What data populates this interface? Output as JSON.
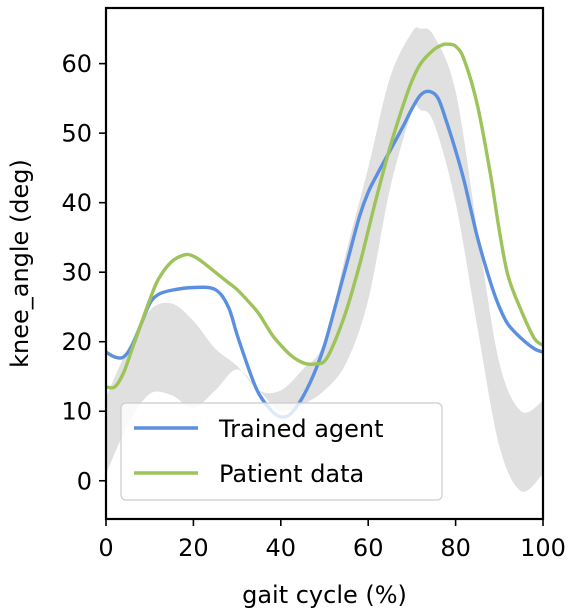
{
  "chart_data": {
    "type": "line",
    "xlabel": "gait cycle (%)",
    "ylabel": "knee_angle (deg)",
    "xlim": [
      0,
      100
    ],
    "ylim": [
      -5.5,
      68
    ],
    "xticks": [
      0,
      20,
      40,
      60,
      80,
      100
    ],
    "yticks": [
      0,
      10,
      20,
      30,
      40,
      50,
      60
    ],
    "grid": false,
    "legend_position": "lower-left",
    "band": {
      "color": "#e0e0e0",
      "x": [
        0,
        5,
        10,
        15,
        20,
        25,
        30,
        35,
        40,
        45,
        50,
        55,
        60,
        65,
        70,
        72,
        75,
        80,
        85,
        90,
        95,
        100
      ],
      "lower": [
        1,
        8,
        12.5,
        12.3,
        10.5,
        13,
        16,
        13,
        10,
        11,
        13,
        17,
        26,
        42,
        53,
        53.3,
        51.5,
        40,
        22,
        5,
        -1.5,
        1
      ],
      "upper": [
        12,
        19,
        24.5,
        25.5,
        23,
        19,
        16.5,
        13,
        13,
        16,
        20,
        33,
        45,
        58,
        64.5,
        65,
        64,
        56,
        36,
        17,
        10,
        11.5
      ]
    },
    "series": [
      {
        "name": "Trained agent",
        "color": "#5b8fdf",
        "x": [
          0,
          2,
          4,
          6,
          8,
          10,
          12,
          15,
          20,
          25,
          28,
          30,
          33,
          35,
          38,
          40,
          42,
          44,
          46,
          48,
          50,
          52,
          55,
          58,
          60,
          62,
          65,
          68,
          70,
          72,
          74,
          76,
          78,
          80,
          82,
          85,
          88,
          90,
          92,
          95,
          98,
          100
        ],
        "y": [
          18.5,
          17.8,
          17.8,
          19.5,
          22.5,
          25.5,
          26.8,
          27.4,
          27.8,
          27.5,
          25,
          21,
          15.5,
          12.5,
          10,
          9.2,
          9.5,
          11,
          13.2,
          16,
          19.5,
          24,
          31,
          38,
          41.5,
          44,
          47.5,
          51,
          53.5,
          55.5,
          56,
          55,
          51.5,
          47.5,
          43,
          35,
          28.5,
          25,
          22.5,
          20.5,
          19,
          18.5
        ]
      },
      {
        "name": "Patient data",
        "color": "#9dc35a",
        "x": [
          0,
          2,
          4,
          6,
          8,
          10,
          12,
          15,
          18,
          20,
          22,
          25,
          28,
          30,
          33,
          35,
          38,
          40,
          42,
          44,
          46,
          48,
          50,
          52,
          55,
          58,
          60,
          62,
          65,
          68,
          70,
          72,
          75,
          77,
          78,
          80,
          82,
          85,
          88,
          90,
          92,
          95,
          98,
          100
        ],
        "y": [
          13.5,
          13.5,
          15.5,
          19,
          22.5,
          26,
          29,
          31.5,
          32.5,
          32.3,
          31.5,
          30,
          28.5,
          27.5,
          25.5,
          24,
          21,
          19.5,
          18.2,
          17.3,
          16.8,
          16.8,
          17.2,
          19.5,
          24.5,
          31,
          36,
          41,
          48,
          54,
          57.5,
          60,
          62,
          62.7,
          62.8,
          62.5,
          60.5,
          54,
          44,
          36,
          29.5,
          24.5,
          20.5,
          19.5
        ]
      }
    ]
  }
}
